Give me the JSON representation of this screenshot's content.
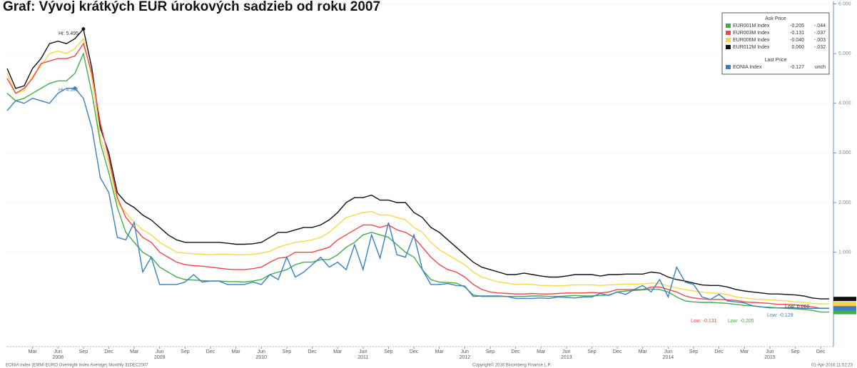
{
  "chart_data": {
    "type": "line",
    "title": "Graf: Vývoj krátkých EUR úrokových sadzieb od roku 2007",
    "categories": [
      null,
      null,
      null,
      "Mar",
      null,
      null,
      "Jun",
      null,
      null,
      "Sep",
      null,
      null,
      "Dec",
      null,
      null,
      "Mar",
      null,
      null,
      "Jun",
      null,
      null,
      "Sep",
      null,
      null,
      "Dec",
      null,
      null,
      "Mar",
      null,
      null,
      "Jun",
      null,
      null,
      "Sep",
      null,
      null,
      "Dec",
      null,
      null,
      "Mar",
      null,
      null,
      "Jun",
      null,
      null,
      "Sep",
      null,
      null,
      "Dec",
      null,
      null,
      "Mar",
      null,
      null,
      "Jun",
      null,
      null,
      "Sep",
      null,
      null,
      "Dec",
      null,
      null,
      "Mar",
      null,
      null,
      "Jun",
      null,
      null,
      "Sep",
      null,
      null,
      "Dec",
      null,
      null,
      "Mar",
      null,
      null,
      "Jun",
      null,
      null,
      "Sep",
      null,
      null,
      "Dec",
      null,
      null,
      "Mar",
      null,
      null,
      "Jun",
      null,
      null,
      "Sep",
      null,
      null,
      "Dec",
      null
    ],
    "years": [
      null,
      null,
      null,
      null,
      null,
      null,
      "2008",
      null,
      null,
      null,
      null,
      null,
      null,
      null,
      null,
      null,
      null,
      null,
      "2009",
      null,
      null,
      null,
      null,
      null,
      null,
      null,
      null,
      null,
      null,
      null,
      "2010",
      null,
      null,
      null,
      null,
      null,
      null,
      null,
      null,
      null,
      null,
      null,
      "2011",
      null,
      null,
      null,
      null,
      null,
      null,
      null,
      null,
      null,
      null,
      null,
      "2012",
      null,
      null,
      null,
      null,
      null,
      null,
      null,
      null,
      null,
      null,
      null,
      "2013",
      null,
      null,
      null,
      null,
      null,
      null,
      null,
      null,
      null,
      null,
      null,
      "2014",
      null,
      null,
      null,
      null,
      null,
      null,
      null,
      null,
      null,
      null,
      null,
      "2015",
      null,
      null,
      null,
      null,
      null,
      null,
      null
    ],
    "series": [
      {
        "name": "EUR001M Index",
        "legend_values": [
          "-0.205",
          "-.044"
        ],
        "color": "#3fae49",
        "values": [
          4.2,
          4.05,
          4.1,
          4.2,
          4.3,
          4.4,
          4.45,
          4.45,
          4.6,
          5.0,
          4.2,
          3.2,
          2.6,
          1.9,
          1.4,
          1.2,
          1.0,
          0.9,
          0.7,
          0.6,
          0.5,
          0.45,
          0.44,
          0.43,
          0.42,
          0.42,
          0.41,
          0.41,
          0.4,
          0.42,
          0.45,
          0.55,
          0.6,
          0.65,
          0.75,
          0.8,
          0.8,
          0.85,
          0.85,
          0.95,
          1.1,
          1.2,
          1.35,
          1.4,
          1.35,
          1.3,
          1.15,
          1.0,
          0.9,
          0.65,
          0.45,
          0.4,
          0.39,
          0.38,
          0.3,
          0.14,
          0.11,
          0.11,
          0.11,
          0.11,
          0.11,
          0.11,
          0.12,
          0.12,
          0.11,
          0.11,
          0.12,
          0.13,
          0.12,
          0.12,
          0.13,
          0.14,
          0.2,
          0.22,
          0.23,
          0.24,
          0.26,
          0.25,
          0.2,
          0.1,
          0.02,
          0.0,
          -0.01,
          -0.01,
          -0.02,
          -0.03,
          -0.05,
          -0.07,
          -0.08,
          -0.1,
          -0.11,
          -0.12,
          -0.13,
          -0.14,
          -0.15,
          -0.17,
          -0.205,
          -0.205
        ]
      },
      {
        "name": "EUR003M Index",
        "legend_values": [
          "-0.131",
          "-.037"
        ],
        "color": "#f0474b",
        "values": [
          4.5,
          4.2,
          4.3,
          4.5,
          4.8,
          4.85,
          4.9,
          4.9,
          4.95,
          5.2,
          4.6,
          3.6,
          2.9,
          2.1,
          1.7,
          1.5,
          1.3,
          1.2,
          1.0,
          0.9,
          0.8,
          0.75,
          0.73,
          0.72,
          0.7,
          0.68,
          0.66,
          0.65,
          0.65,
          0.67,
          0.7,
          0.8,
          0.88,
          0.9,
          1.0,
          1.0,
          1.0,
          1.05,
          1.1,
          1.25,
          1.35,
          1.45,
          1.55,
          1.55,
          1.5,
          1.55,
          1.45,
          1.4,
          1.3,
          1.1,
          0.9,
          0.75,
          0.65,
          0.6,
          0.5,
          0.35,
          0.25,
          0.2,
          0.18,
          0.17,
          0.16,
          0.16,
          0.17,
          0.16,
          0.16,
          0.17,
          0.18,
          0.18,
          0.18,
          0.19,
          0.18,
          0.2,
          0.25,
          0.25,
          0.25,
          0.25,
          0.3,
          0.3,
          0.25,
          0.2,
          0.12,
          0.08,
          0.06,
          0.05,
          0.05,
          0.04,
          0.03,
          0.0,
          -0.01,
          -0.02,
          -0.03,
          -0.05,
          -0.05,
          -0.06,
          -0.08,
          -0.1,
          -0.131,
          -0.131
        ]
      },
      {
        "name": "EUR006M Index",
        "legend_values": [
          "-0.040",
          "-.003"
        ],
        "color": "#f7d84a",
        "values": [
          4.6,
          4.2,
          4.25,
          4.55,
          4.75,
          5.0,
          5.05,
          5.0,
          5.1,
          5.3,
          4.5,
          3.3,
          2.8,
          2.0,
          1.8,
          1.6,
          1.45,
          1.35,
          1.2,
          1.1,
          1.0,
          0.98,
          0.97,
          0.96,
          0.95,
          0.96,
          0.96,
          0.95,
          0.95,
          0.96,
          0.98,
          1.02,
          1.1,
          1.15,
          1.2,
          1.22,
          1.25,
          1.3,
          1.4,
          1.55,
          1.7,
          1.75,
          1.8,
          1.82,
          1.75,
          1.75,
          1.7,
          1.65,
          1.5,
          1.4,
          1.2,
          1.05,
          0.95,
          0.85,
          0.75,
          0.6,
          0.5,
          0.45,
          0.4,
          0.38,
          0.35,
          0.36,
          0.35,
          0.33,
          0.33,
          0.32,
          0.33,
          0.34,
          0.34,
          0.34,
          0.33,
          0.34,
          0.35,
          0.36,
          0.36,
          0.36,
          0.38,
          0.37,
          0.32,
          0.28,
          0.25,
          0.22,
          0.2,
          0.18,
          0.17,
          0.15,
          0.1,
          0.08,
          0.06,
          0.05,
          0.04,
          0.03,
          0.02,
          0.0,
          -0.01,
          -0.03,
          -0.04,
          -0.04
        ]
      },
      {
        "name": "EUR012M Index",
        "legend_values": [
          "0.060",
          "-.032"
        ],
        "color": "#111111",
        "values": [
          4.7,
          4.3,
          4.35,
          4.7,
          4.9,
          5.2,
          5.25,
          5.2,
          5.3,
          5.495,
          4.7,
          3.5,
          3.0,
          2.2,
          2.0,
          1.9,
          1.75,
          1.65,
          1.5,
          1.35,
          1.25,
          1.2,
          1.2,
          1.2,
          1.2,
          1.2,
          1.18,
          1.16,
          1.16,
          1.17,
          1.2,
          1.3,
          1.4,
          1.4,
          1.45,
          1.5,
          1.5,
          1.55,
          1.65,
          1.8,
          2.0,
          2.1,
          2.1,
          2.15,
          2.05,
          2.05,
          2.0,
          2.0,
          1.8,
          1.7,
          1.5,
          1.4,
          1.25,
          1.1,
          0.95,
          0.8,
          0.7,
          0.65,
          0.6,
          0.55,
          0.55,
          0.58,
          0.55,
          0.52,
          0.5,
          0.5,
          0.52,
          0.55,
          0.55,
          0.55,
          0.52,
          0.55,
          0.55,
          0.56,
          0.56,
          0.56,
          0.6,
          0.58,
          0.5,
          0.45,
          0.42,
          0.38,
          0.34,
          0.33,
          0.33,
          0.3,
          0.25,
          0.22,
          0.2,
          0.18,
          0.16,
          0.16,
          0.15,
          0.14,
          0.12,
          0.08,
          0.06,
          0.06
        ]
      },
      {
        "name": "EONIA Index",
        "legend_values": [
          "-0.127",
          "unch"
        ],
        "color": "#3a7fc1",
        "values": [
          3.85,
          4.05,
          4.0,
          4.1,
          4.05,
          4.0,
          4.2,
          4.3,
          4.301,
          4.1,
          3.5,
          2.5,
          2.2,
          1.3,
          1.25,
          1.6,
          0.6,
          0.9,
          0.35,
          0.35,
          0.35,
          0.4,
          0.55,
          0.4,
          0.42,
          0.42,
          0.35,
          0.35,
          0.35,
          0.4,
          0.35,
          0.55,
          0.45,
          0.9,
          0.5,
          0.6,
          0.75,
          0.9,
          0.7,
          0.8,
          0.65,
          1.15,
          0.65,
          1.35,
          0.88,
          1.6,
          0.95,
          0.9,
          1.35,
          0.65,
          0.35,
          0.35,
          0.37,
          0.33,
          0.32,
          0.11,
          0.12,
          0.12,
          0.12,
          0.11,
          0.07,
          0.07,
          0.07,
          0.08,
          0.07,
          0.1,
          0.09,
          0.08,
          0.1,
          0.1,
          0.17,
          0.13,
          0.2,
          0.15,
          0.25,
          0.33,
          0.2,
          0.45,
          0.1,
          0.7,
          0.4,
          0.35,
          0.1,
          0.05,
          0.15,
          0.02,
          0.0,
          -0.02,
          -0.08,
          -0.1,
          -0.12,
          -0.12,
          -0.12,
          -0.12,
          -0.13,
          -0.13,
          -0.127,
          -0.127
        ]
      }
    ],
    "legend_title": "Ask Price",
    "legend_subtitle": "Last Price",
    "legend_position": "upper right",
    "ylim": [
      -0.9,
      6.05
    ],
    "yticks": [
      {
        "value": 1,
        "label": "1.000"
      },
      {
        "value": 2,
        "label": "2.000"
      },
      {
        "value": 3,
        "label": "3.000"
      },
      {
        "value": 4,
        "label": "4.000"
      },
      {
        "value": 5,
        "label": "5.000"
      },
      {
        "value": 6,
        "label": "6.000"
      }
    ],
    "grid": true,
    "annotations": [
      {
        "text": "Hi: 5.495",
        "color": "#333333"
      },
      {
        "text": "Hi: 4.301",
        "color": "#3a7fc1"
      },
      {
        "text": "Low: -0.131",
        "color": "#f0474b"
      },
      {
        "text": "Low: -0.205",
        "color": "#3fae49"
      },
      {
        "text": "Low: -0.129",
        "color": "#3a7fc1"
      },
      {
        "text": "Low: 0.060",
        "color": "#333333"
      }
    ],
    "footer_left": "EONIA Index (EMMI EURO Overnight Index Average) Monthly 31DEC2007",
    "footer_center": "Copyright© 2016 Bloomberg Finance L.P.",
    "footer_right": "01-Apr-2016 11:52:23"
  }
}
